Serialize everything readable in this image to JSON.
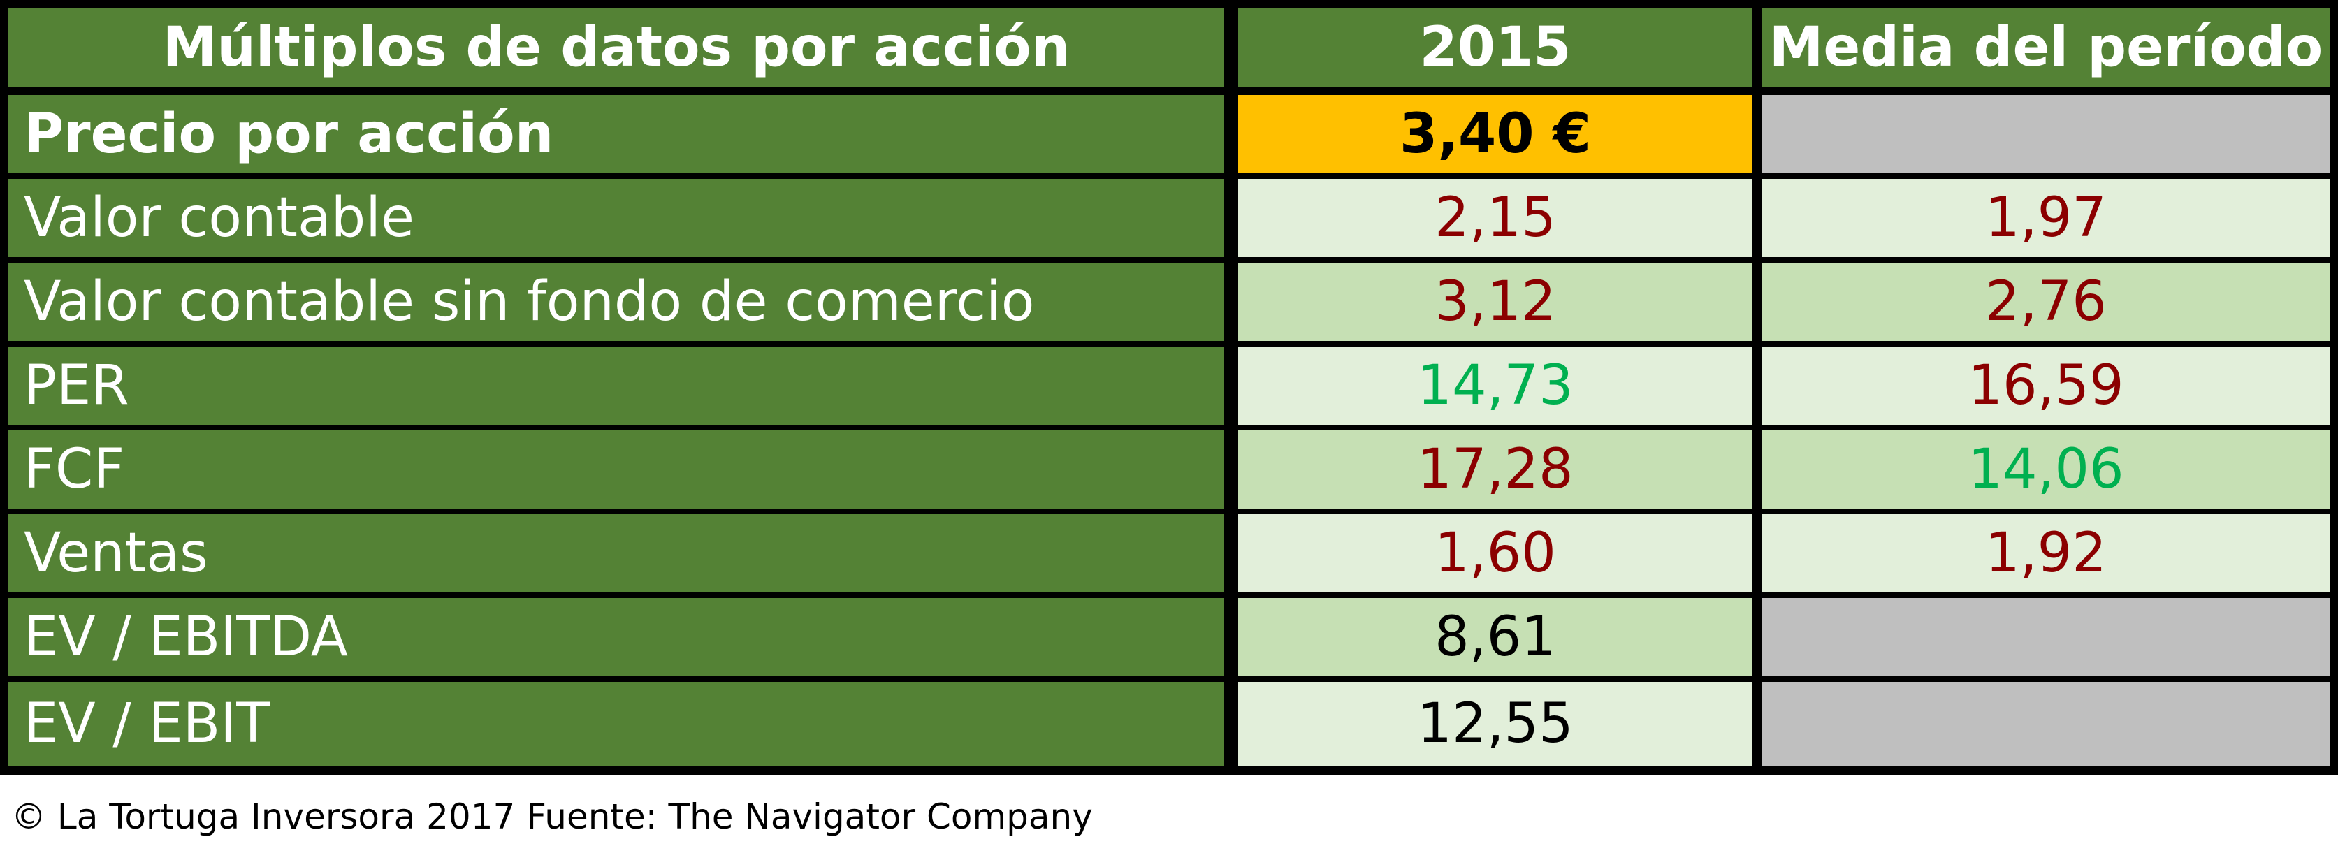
{
  "table": {
    "headers": [
      "Múltiplos de datos por acción",
      "2015",
      "Media del período"
    ],
    "price_row": {
      "label": "Precio por acción",
      "value_2015": "3,40 €",
      "value_media": ""
    },
    "rows": [
      {
        "label": "Valor contable",
        "value_2015": "2,15",
        "value_media": "1,97"
      },
      {
        "label": "Valor contable sin fondo de comercio",
        "value_2015": "3,12",
        "value_media": "2,76"
      },
      {
        "label": "PER",
        "value_2015": "14,73",
        "value_media": "16,59"
      },
      {
        "label": "FCF",
        "value_2015": "17,28",
        "value_media": "14,06"
      },
      {
        "label": "Ventas",
        "value_2015": "1,60",
        "value_media": "1,92"
      },
      {
        "label": "EV / EBITDA",
        "value_2015": "8,61",
        "value_media": ""
      },
      {
        "label": "EV / EBIT",
        "value_2015": "12,55",
        "value_media": ""
      }
    ]
  },
  "colors": {
    "header_green": "#548235",
    "price_highlight": "#ffc000",
    "cell_light": "#e2efda",
    "cell_mid": "#c6e0b4",
    "empty_gray": "#bfbfbf",
    "value_red": "#8b0000",
    "value_green": "#00b050"
  },
  "footer": "© La Tortuga Inversora 2017 Fuente: The Navigator Company"
}
